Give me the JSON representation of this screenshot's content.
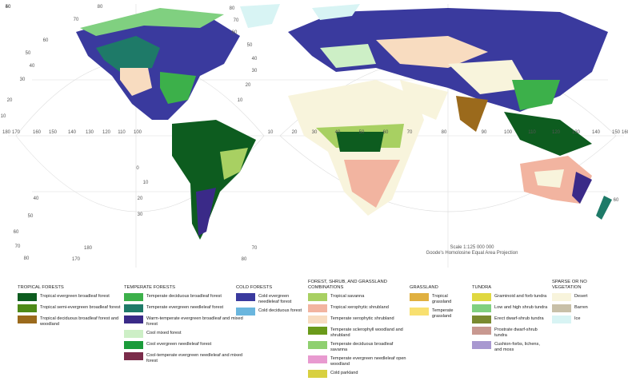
{
  "map": {
    "scale": "Scale 1:125 000 000",
    "projection": "Goode's Homolosine Equal Area Projection",
    "graticule_labels": [
      "80",
      "70",
      "60",
      "50",
      "40",
      "30",
      "20",
      "10",
      "180",
      "170",
      "160",
      "150",
      "140",
      "130",
      "120",
      "110",
      "100",
      "0",
      "10",
      "20",
      "30",
      "40",
      "50",
      "60",
      "70",
      "80",
      "80",
      "70",
      "60",
      "50",
      "40",
      "30",
      "20",
      "10",
      "10",
      "20",
      "30",
      "40",
      "50",
      "60",
      "70",
      "80",
      "90",
      "100",
      "110",
      "120",
      "130",
      "140",
      "150",
      "160",
      "170",
      "180",
      "80",
      "70",
      "60",
      "50",
      "40"
    ]
  },
  "legend": {
    "groups": [
      {
        "title": "TROPICAL FORESTS",
        "items": [
          {
            "label": "Tropical evergreen broadleaf forest",
            "color": "#0d5c1f"
          },
          {
            "label": "Tropical semi-evergreen broadleaf forest",
            "color": "#4e8a18"
          },
          {
            "label": "Tropical deciduous broadleaf forest and woodland",
            "color": "#9b6a1c"
          }
        ]
      },
      {
        "title": "TEMPERATE FORESTS",
        "items": [
          {
            "label": "Temperate deciduous broadleaf forest",
            "color": "#3cb04a"
          },
          {
            "label": "Temperate evergreen needleleaf forest",
            "color": "#1e7a68"
          },
          {
            "label": "Warm-temperate evergreen broadleaf and mixed forest",
            "color": "#3a2a88"
          },
          {
            "label": "Cool mixed forest",
            "color": "#cdefc6"
          },
          {
            "label": "Cool evergreen needleleaf forest",
            "color": "#1a9b3a"
          },
          {
            "label": "Cool-temperate evergreen needleleaf and mixed forest",
            "color": "#7a2c4a"
          }
        ]
      },
      {
        "title": "COLD FORESTS",
        "items": [
          {
            "label": "Cold evergreen needleleaf forest",
            "color": "#3a3a9e"
          },
          {
            "label": "Cold deciduous forest",
            "color": "#6ab6de"
          }
        ]
      },
      {
        "title": "FOREST, SHRUB, AND GRASSLAND COMBINATIONS",
        "items": [
          {
            "label": "Tropical savanna",
            "color": "#a8d062"
          },
          {
            "label": "Tropical xerophytic shrubland",
            "color": "#f2b4a0"
          },
          {
            "label": "Temperate xerophytic shrubland",
            "color": "#f8dcc0"
          },
          {
            "label": "Temperate sclerophyll woodland and shrubland",
            "color": "#6a9a1a"
          },
          {
            "label": "Temperate deciduous broadleaf savanna",
            "color": "#8fd070"
          },
          {
            "label": "Temperate evergreen needleleaf open woodland",
            "color": "#e89ad0"
          },
          {
            "label": "Cold parkland",
            "color": "#d8d040"
          }
        ]
      },
      {
        "title": "GRASSLAND",
        "items": [
          {
            "label": "Tropical grassland",
            "color": "#e0b040"
          },
          {
            "label": "Temperate grassland",
            "color": "#f8e070"
          }
        ]
      },
      {
        "title": "TUNDRA",
        "items": [
          {
            "label": "Graminoid and forb tundra",
            "color": "#e0d840"
          },
          {
            "label": "Low and high shrub tundra",
            "color": "#80d080"
          },
          {
            "label": "Erect dwarf-shrub tundra",
            "color": "#7a8a30"
          },
          {
            "label": "Prostrate dwarf-shrub tundra",
            "color": "#c89890"
          },
          {
            "label": "Cushion-forbs, lichens, and moss",
            "color": "#a898d0"
          }
        ]
      },
      {
        "title": "SPARSE OR NO VEGETATION",
        "items": [
          {
            "label": "Desert",
            "color": "#f8f4dc"
          },
          {
            "label": "Barren",
            "color": "#c8c0a8"
          },
          {
            "label": "Ice",
            "color": "#d8f4f4"
          }
        ]
      }
    ]
  }
}
